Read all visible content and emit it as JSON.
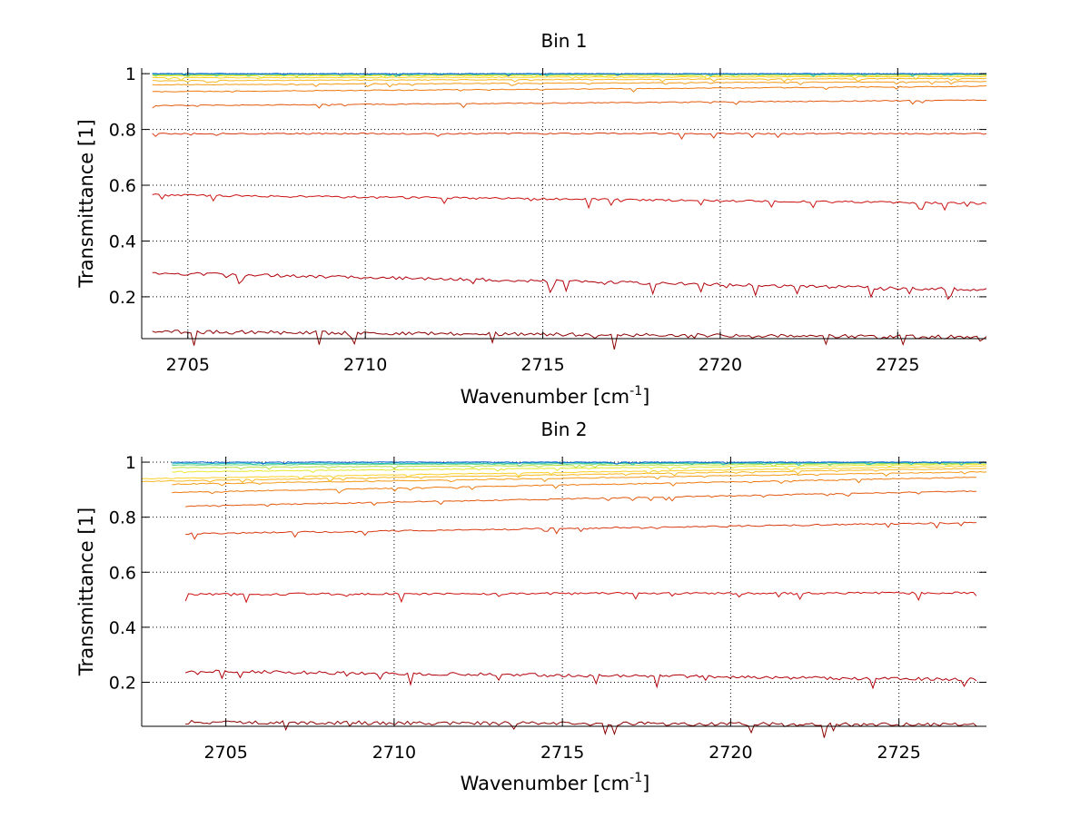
{
  "chart_data": [
    {
      "type": "line",
      "title": "Bin 1",
      "xlabel": "Wavenumber [cm",
      "xlabel_sup": "-1",
      "xlabel_end": "]",
      "ylabel": "Transmittance [1]",
      "xlim": [
        2703.7,
        2727.5
      ],
      "ylim": [
        0.05,
        1.02
      ],
      "xticks": [
        2705,
        2710,
        2715,
        2720,
        2725
      ],
      "yticks": [
        0.2,
        0.4,
        0.6,
        0.8,
        1
      ],
      "ytick_labels": [
        "0.2",
        "0.4",
        "0.6",
        "0.8",
        "1"
      ],
      "grid": true,
      "series": [
        {
          "x_start": 2704.0,
          "x_end": 2727.5,
          "y_start": 0.075,
          "y_end": 0.055,
          "color": "#8b0000"
        },
        {
          "x_start": 2704.0,
          "x_end": 2727.5,
          "y_start": 0.285,
          "y_end": 0.225,
          "color": "#b2000a"
        },
        {
          "x_start": 2704.0,
          "x_end": 2727.5,
          "y_start": 0.565,
          "y_end": 0.535,
          "color": "#cc1010"
        },
        {
          "x_start": 2704.0,
          "x_end": 2727.5,
          "y_start": 0.785,
          "y_end": 0.785,
          "color": "#d93a10"
        },
        {
          "x_start": 2704.0,
          "x_end": 2727.5,
          "y_start": 0.885,
          "y_end": 0.905,
          "color": "#e35a10"
        },
        {
          "x_start": 2704.0,
          "x_end": 2727.5,
          "y_start": 0.935,
          "y_end": 0.955,
          "color": "#ee7a10"
        },
        {
          "x_start": 2704.0,
          "x_end": 2727.5,
          "y_start": 0.96,
          "y_end": 0.972,
          "color": "#f49a18"
        },
        {
          "x_start": 2704.0,
          "x_end": 2727.5,
          "y_start": 0.975,
          "y_end": 0.983,
          "color": "#f8b820"
        },
        {
          "x_start": 2704.0,
          "x_end": 2727.5,
          "y_start": 0.985,
          "y_end": 0.99,
          "color": "#fbd02a"
        },
        {
          "x_start": 2704.0,
          "x_end": 2727.5,
          "y_start": 0.992,
          "y_end": 0.995,
          "color": "#e8e830"
        },
        {
          "x_start": 2704.0,
          "x_end": 2727.5,
          "y_start": 0.996,
          "y_end": 0.997,
          "color": "#b8e040"
        },
        {
          "x_start": 2704.0,
          "x_end": 2727.5,
          "y_start": 0.998,
          "y_end": 0.998,
          "color": "#60d080"
        },
        {
          "x_start": 2704.0,
          "x_end": 2727.5,
          "y_start": 0.999,
          "y_end": 0.999,
          "color": "#20c0c0"
        },
        {
          "x_start": 2704.0,
          "x_end": 2727.5,
          "y_start": 1.0,
          "y_end": 1.0,
          "color": "#1060d0"
        }
      ]
    },
    {
      "type": "line",
      "title": "Bin 2",
      "xlabel": "Wavenumber [cm",
      "xlabel_sup": "-1",
      "xlabel_end": "]",
      "ylabel": "Transmittance [1]",
      "xlim": [
        2702.5,
        2727.6
      ],
      "ylim": [
        0.04,
        1.02
      ],
      "xticks": [
        2705,
        2710,
        2715,
        2720,
        2725
      ],
      "yticks": [
        0.2,
        0.4,
        0.6,
        0.8,
        1
      ],
      "ytick_labels": [
        "0.2",
        "0.4",
        "0.6",
        "0.8",
        "1"
      ],
      "grid": true,
      "series": [
        {
          "x_start": 2703.8,
          "x_end": 2727.3,
          "y_start": 0.055,
          "y_end": 0.045,
          "color": "#8b0000"
        },
        {
          "x_start": 2703.8,
          "x_end": 2727.3,
          "y_start": 0.24,
          "y_end": 0.21,
          "color": "#b2000a"
        },
        {
          "x_start": 2703.8,
          "x_end": 2727.3,
          "y_start": 0.52,
          "y_end": 0.525,
          "color": "#cc1010"
        },
        {
          "x_start": 2703.8,
          "x_end": 2727.3,
          "y_start": 0.74,
          "y_end": 0.78,
          "color": "#d93a10"
        },
        {
          "x_start": 2703.8,
          "x_end": 2727.3,
          "y_start": 0.84,
          "y_end": 0.895,
          "color": "#e35a10"
        },
        {
          "x_start": 2703.4,
          "x_end": 2727.3,
          "y_start": 0.89,
          "y_end": 0.945,
          "color": "#ee7a10"
        },
        {
          "x_start": 2703.4,
          "x_end": 2727.6,
          "y_start": 0.92,
          "y_end": 0.965,
          "color": "#f49a18"
        },
        {
          "x_start": 2702.5,
          "x_end": 2727.6,
          "y_start": 0.93,
          "y_end": 0.978,
          "color": "#f8b820"
        },
        {
          "x_start": 2702.5,
          "x_end": 2727.6,
          "y_start": 0.94,
          "y_end": 0.986,
          "color": "#fbd02a"
        },
        {
          "x_start": 2703.4,
          "x_end": 2727.6,
          "y_start": 0.965,
          "y_end": 0.992,
          "color": "#e8e830"
        },
        {
          "x_start": 2703.4,
          "x_end": 2727.6,
          "y_start": 0.98,
          "y_end": 0.996,
          "color": "#b8e040"
        },
        {
          "x_start": 2703.4,
          "x_end": 2727.6,
          "y_start": 0.99,
          "y_end": 0.998,
          "color": "#60d080"
        },
        {
          "x_start": 2703.4,
          "x_end": 2727.6,
          "y_start": 0.995,
          "y_end": 0.999,
          "color": "#20c0c0"
        },
        {
          "x_start": 2703.4,
          "x_end": 2727.6,
          "y_start": 1.0,
          "y_end": 1.0,
          "color": "#1060d0"
        }
      ]
    }
  ]
}
